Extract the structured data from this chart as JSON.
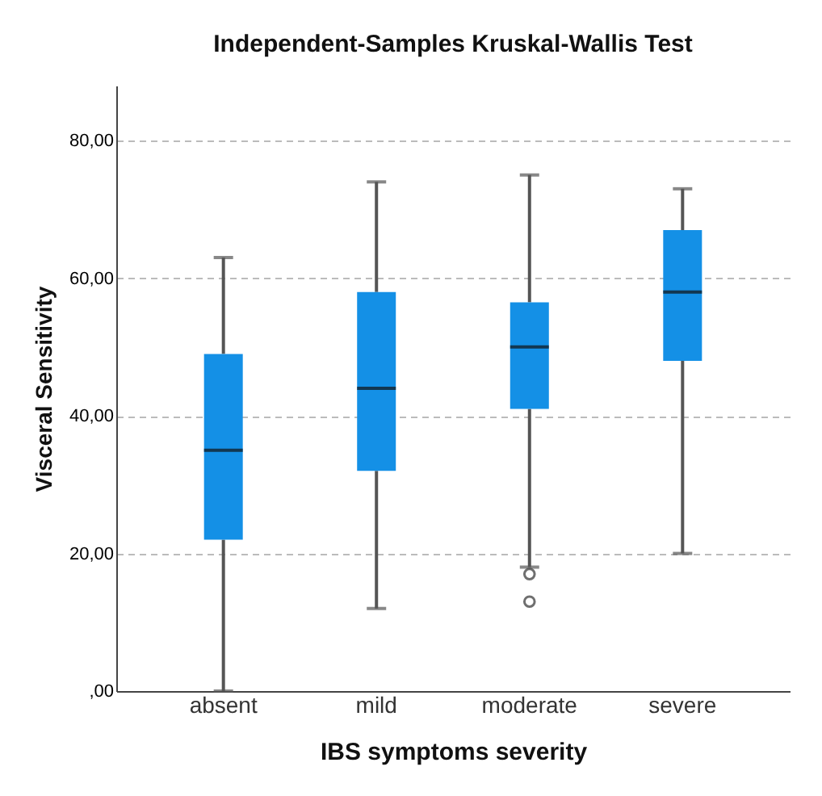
{
  "chart_data": {
    "type": "box",
    "title": "Independent-Samples Kruskal-Wallis Test",
    "xlabel": "IBS symptoms severity",
    "ylabel": "Visceral Sensitivity",
    "categories": [
      "absent",
      "mild",
      "moderate",
      "severe"
    ],
    "boxes": [
      {
        "low": 0,
        "q1": 22,
        "median": 35,
        "q3": 49,
        "high": 63
      },
      {
        "low": 12,
        "q1": 32,
        "median": 44,
        "q3": 58,
        "high": 74
      },
      {
        "low": 18,
        "q1": 41,
        "median": 50,
        "q3": 56.5,
        "high": 75,
        "outliers": [
          17,
          13
        ]
      },
      {
        "low": 20,
        "q1": 48,
        "median": 58,
        "q3": 67,
        "high": 73
      }
    ],
    "color": "#1490e6",
    "ylim": [
      0,
      88
    ],
    "yticks": [
      {
        "value": 0,
        "label": ",00"
      },
      {
        "value": 20,
        "label": "20,00"
      },
      {
        "value": 40,
        "label": "40,00"
      },
      {
        "value": 60,
        "label": "60,00"
      },
      {
        "value": 80,
        "label": "80,00"
      }
    ],
    "grid": "y",
    "marker": "circle"
  }
}
